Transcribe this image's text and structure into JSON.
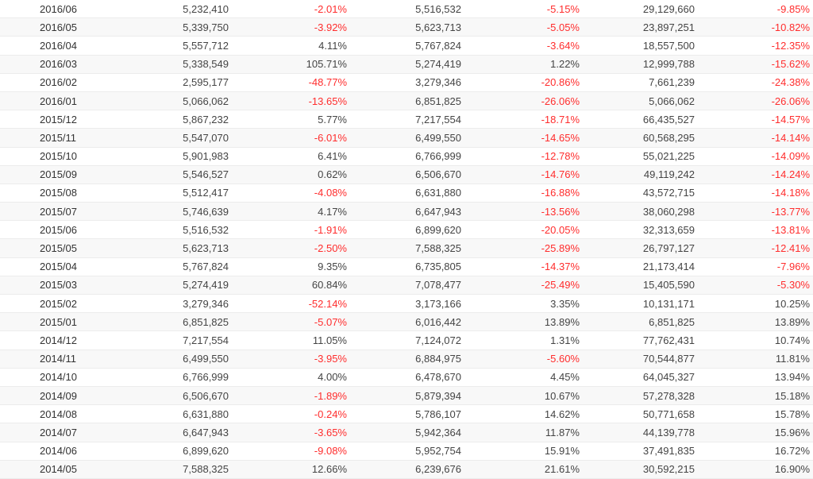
{
  "colors": {
    "negative": "#ff2d2d",
    "positive": "#444444",
    "row_alt": "#f8f8f8",
    "row_border": "#ececec"
  },
  "chart_data": {
    "type": "table",
    "grid": true,
    "legend": "none",
    "column_roles": [
      "date",
      "value",
      "percent",
      "value",
      "percent",
      "value",
      "percent"
    ],
    "rows": [
      [
        "2016/06",
        "5,232,410",
        "-2.01%",
        "5,516,532",
        "-5.15%",
        "29,129,660",
        "-9.85%"
      ],
      [
        "2016/05",
        "5,339,750",
        "-3.92%",
        "5,623,713",
        "-5.05%",
        "23,897,251",
        "-10.82%"
      ],
      [
        "2016/04",
        "5,557,712",
        "4.11%",
        "5,767,824",
        "-3.64%",
        "18,557,500",
        "-12.35%"
      ],
      [
        "2016/03",
        "5,338,549",
        "105.71%",
        "5,274,419",
        "1.22%",
        "12,999,788",
        "-15.62%"
      ],
      [
        "2016/02",
        "2,595,177",
        "-48.77%",
        "3,279,346",
        "-20.86%",
        "7,661,239",
        "-24.38%"
      ],
      [
        "2016/01",
        "5,066,062",
        "-13.65%",
        "6,851,825",
        "-26.06%",
        "5,066,062",
        "-26.06%"
      ],
      [
        "2015/12",
        "5,867,232",
        "5.77%",
        "7,217,554",
        "-18.71%",
        "66,435,527",
        "-14.57%"
      ],
      [
        "2015/11",
        "5,547,070",
        "-6.01%",
        "6,499,550",
        "-14.65%",
        "60,568,295",
        "-14.14%"
      ],
      [
        "2015/10",
        "5,901,983",
        "6.41%",
        "6,766,999",
        "-12.78%",
        "55,021,225",
        "-14.09%"
      ],
      [
        "2015/09",
        "5,546,527",
        "0.62%",
        "6,506,670",
        "-14.76%",
        "49,119,242",
        "-14.24%"
      ],
      [
        "2015/08",
        "5,512,417",
        "-4.08%",
        "6,631,880",
        "-16.88%",
        "43,572,715",
        "-14.18%"
      ],
      [
        "2015/07",
        "5,746,639",
        "4.17%",
        "6,647,943",
        "-13.56%",
        "38,060,298",
        "-13.77%"
      ],
      [
        "2015/06",
        "5,516,532",
        "-1.91%",
        "6,899,620",
        "-20.05%",
        "32,313,659",
        "-13.81%"
      ],
      [
        "2015/05",
        "5,623,713",
        "-2.50%",
        "7,588,325",
        "-25.89%",
        "26,797,127",
        "-12.41%"
      ],
      [
        "2015/04",
        "5,767,824",
        "9.35%",
        "6,735,805",
        "-14.37%",
        "21,173,414",
        "-7.96%"
      ],
      [
        "2015/03",
        "5,274,419",
        "60.84%",
        "7,078,477",
        "-25.49%",
        "15,405,590",
        "-5.30%"
      ],
      [
        "2015/02",
        "3,279,346",
        "-52.14%",
        "3,173,166",
        "3.35%",
        "10,131,171",
        "10.25%"
      ],
      [
        "2015/01",
        "6,851,825",
        "-5.07%",
        "6,016,442",
        "13.89%",
        "6,851,825",
        "13.89%"
      ],
      [
        "2014/12",
        "7,217,554",
        "11.05%",
        "7,124,072",
        "1.31%",
        "77,762,431",
        "10.74%"
      ],
      [
        "2014/11",
        "6,499,550",
        "-3.95%",
        "6,884,975",
        "-5.60%",
        "70,544,877",
        "11.81%"
      ],
      [
        "2014/10",
        "6,766,999",
        "4.00%",
        "6,478,670",
        "4.45%",
        "64,045,327",
        "13.94%"
      ],
      [
        "2014/09",
        "6,506,670",
        "-1.89%",
        "5,879,394",
        "10.67%",
        "57,278,328",
        "15.18%"
      ],
      [
        "2014/08",
        "6,631,880",
        "-0.24%",
        "5,786,107",
        "14.62%",
        "50,771,658",
        "15.78%"
      ],
      [
        "2014/07",
        "6,647,943",
        "-3.65%",
        "5,942,364",
        "11.87%",
        "44,139,778",
        "15.96%"
      ],
      [
        "2014/06",
        "6,899,620",
        "-9.08%",
        "5,952,754",
        "15.91%",
        "37,491,835",
        "16.72%"
      ],
      [
        "2014/05",
        "7,588,325",
        "12.66%",
        "6,239,676",
        "21.61%",
        "30,592,215",
        "16.90%"
      ]
    ]
  }
}
